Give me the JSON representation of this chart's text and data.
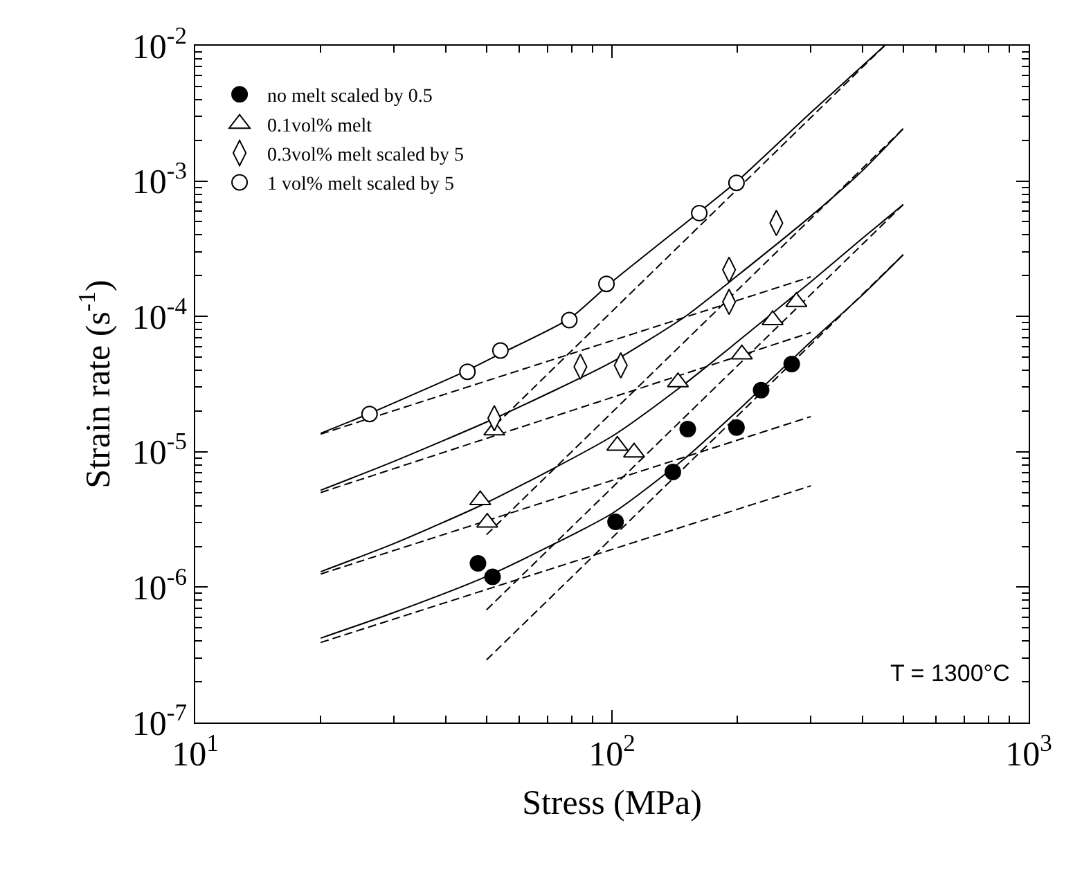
{
  "chart_data": {
    "type": "scatter",
    "xlabel": "Stress (MPa)",
    "ylabel": "Strain rate (s$^{-1}$)",
    "log": "xy",
    "grid": false,
    "legend": "top left",
    "xlim": [
      10,
      1000
    ],
    "xticks": [
      {
        "value": 10,
        "label": "10$^{1}$"
      },
      {
        "value": 100,
        "label": "10$^{2}$"
      },
      {
        "value": 1000,
        "label": "10$^{3}$"
      }
    ],
    "ylim": [
      1e-07,
      0.01
    ],
    "yticks": [
      {
        "value": 1e-07,
        "label": "10$^{-7}$"
      },
      {
        "value": 1e-06,
        "label": "10$^{-6}$"
      },
      {
        "value": 1e-05,
        "label": "10$^{-5}$"
      },
      {
        "value": 0.0001,
        "label": "10$^{-4}$"
      },
      {
        "value": 0.001,
        "label": "10$^{-3}$"
      },
      {
        "value": 0.01,
        "label": "10$^{-2}$"
      }
    ],
    "annotations": [
      "T = 1300°C"
    ],
    "series": [
      {
        "name": "no melt scaled by 0.5",
        "color": "#000000",
        "marker": "circle",
        "x": [
          47.7,
          51.7,
          102,
          140,
          152,
          199,
          228,
          270
        ],
        "values": [
          1.5e-06,
          1.19e-06,
          3.04e-06,
          7.1e-06,
          1.47e-05,
          1.51e-05,
          2.85e-05,
          4.45e-05
        ]
      },
      {
        "name": "0.1vol% melt",
        "color": "#ffffff",
        "marker": "triangle",
        "x": [
          48.3,
          50.2,
          52.2,
          103,
          113,
          144,
          205,
          243,
          277
        ],
        "values": [
          4.4e-06,
          3e-06,
          1.44e-05,
          1.11e-05,
          9.9e-06,
          3.27e-05,
          5.25e-05,
          9.4e-05,
          0.000128
        ]
      },
      {
        "name": "0.3vol% melt scaled by 5",
        "color": "#ffffff",
        "marker": "diamond",
        "x": [
          52.2,
          84,
          105,
          191,
          191,
          248
        ],
        "values": [
          1.77e-05,
          4.25e-05,
          4.35e-05,
          0.000221,
          0.000128,
          0.00049
        ]
      },
      {
        "name": "1 vol% melt scaled by 5",
        "color": "#ffffff",
        "marker": "circle",
        "x": [
          26.2,
          45,
          54,
          79,
          97,
          162,
          199
        ],
        "values": [
          1.9e-05,
          3.9e-05,
          5.6e-05,
          9.4e-05,
          0.000174,
          0.00058,
          0.00097
        ]
      },
      {
        "type": "line",
        "color": "#000000",
        "line_style": "solid",
        "x": [
          20,
          30,
          50,
          100,
          150,
          200,
          300,
          400,
          500
        ],
        "values": [
          4.2e-07,
          6.5e-07,
          1.2e-06,
          3.5e-06,
          9e-06,
          2e-05,
          6.5e-05,
          0.000145,
          0.000286
        ]
      },
      {
        "type": "line",
        "color": "#000000",
        "line_style": "solid",
        "x": [
          20,
          30,
          50,
          100,
          150,
          200,
          300,
          400,
          500
        ],
        "values": [
          1.3e-06,
          2.1e-06,
          4.2e-06,
          1.3e-05,
          3.2e-05,
          6.5e-05,
          0.00018,
          0.00038,
          0.00067
        ]
      },
      {
        "type": "line",
        "color": "#000000",
        "line_style": "solid",
        "x": [
          20,
          30,
          52,
          100,
          150,
          200,
          300,
          400,
          500
        ],
        "values": [
          5.2e-06,
          8.5e-06,
          1.75e-05,
          4.6e-05,
          0.0001,
          0.0002,
          0.00055,
          0.0012,
          0.00244
        ]
      },
      {
        "type": "line",
        "color": "#000000",
        "line_style": "solid",
        "x": [
          20,
          26,
          45,
          54,
          79,
          100,
          162,
          200,
          300,
          451
        ],
        "values": [
          1.37e-05,
          1.9e-05,
          4e-05,
          5.3e-05,
          9.6e-05,
          0.00018,
          0.00059,
          0.001,
          0.0032,
          0.01
        ]
      },
      {
        "type": "line",
        "color": "#000000",
        "line_style": "dashed",
        "x": [
          20,
          300
        ],
        "values": [
          3.9e-07,
          5.6e-06
        ]
      },
      {
        "type": "line",
        "color": "#000000",
        "line_style": "dashed",
        "x": [
          20,
          300
        ],
        "values": [
          1.25e-06,
          1.82e-05
        ]
      },
      {
        "type": "line",
        "color": "#000000",
        "line_style": "dashed",
        "x": [
          20,
          300
        ],
        "values": [
          5e-06,
          7.6e-05
        ]
      },
      {
        "type": "line",
        "color": "#000000",
        "line_style": "dashed",
        "x": [
          20,
          300
        ],
        "values": [
          1.35e-05,
          0.000196
        ]
      },
      {
        "type": "line",
        "color": "#000000",
        "line_style": "dashed",
        "x": [
          50,
          500
        ],
        "values": [
          2.9e-07,
          0.000286
        ]
      },
      {
        "type": "line",
        "color": "#000000",
        "line_style": "dashed",
        "x": [
          50,
          500
        ],
        "values": [
          6.8e-07,
          0.00067
        ]
      },
      {
        "type": "line",
        "color": "#000000",
        "line_style": "dashed",
        "x": [
          50,
          500
        ],
        "values": [
          2.44e-06,
          0.00244
        ]
      },
      {
        "type": "line",
        "color": "#000000",
        "line_style": "dashed",
        "x": [
          50,
          451
        ],
        "values": [
          1.36e-05,
          0.01
        ]
      }
    ]
  }
}
